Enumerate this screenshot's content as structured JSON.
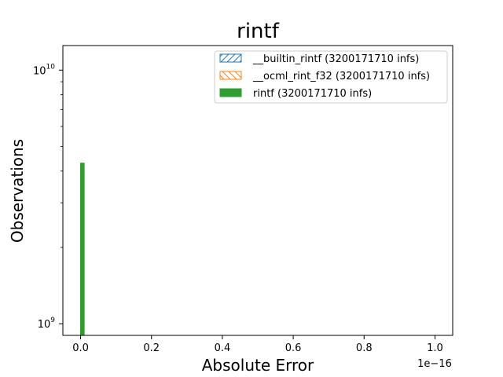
{
  "chart_data": {
    "type": "bar",
    "title": "rintf",
    "xlabel": "Absolute Error",
    "ylabel": "Observations",
    "x_offset_label": "1e−16",
    "x_scale_factor": 1e-16,
    "xlim": [
      -0.05,
      1.05
    ],
    "x_ticks": [
      0.0,
      0.2,
      0.4,
      0.6,
      0.8,
      1.0
    ],
    "x_tick_labels": [
      "0.0",
      "0.2",
      "0.4",
      "0.6",
      "0.8",
      "1.0"
    ],
    "y_scale": "log",
    "ylim": [
      900000000,
      12500000000
    ],
    "y_ticks": [
      {
        "value": 1000000000,
        "base": "10",
        "exp": "9"
      },
      {
        "value": 10000000000,
        "base": "10",
        "exp": "10"
      }
    ],
    "grid": false,
    "legend_position": "top-right",
    "bins": {
      "x0": 0.0,
      "width": 0.01
    },
    "series": [
      {
        "name": "__builtin_rintf (3200171710 infs)",
        "color": "#1f77b4",
        "pattern": "diagonal-forward",
        "values": [
          4294967296
        ]
      },
      {
        "name": "__ocml_rint_f32 (3200171710 infs)",
        "color": "#ff7f0e",
        "pattern": "diagonal-back",
        "values": [
          4294967296
        ]
      },
      {
        "name": "rintf (3200171710 infs)",
        "color": "#2ca02c",
        "pattern": "solid",
        "values": [
          4294967296
        ]
      }
    ]
  }
}
